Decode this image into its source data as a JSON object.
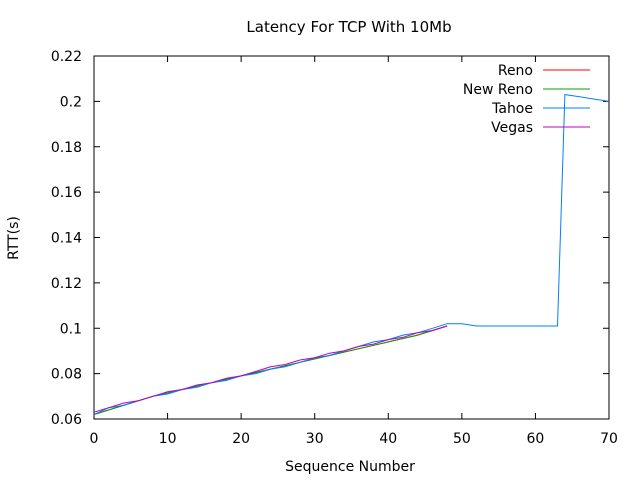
{
  "chart_data": {
    "type": "line",
    "title": "Latency For TCP With 10Mb",
    "xlabel": "Sequence Number",
    "ylabel": "RTT(s)",
    "xlim": [
      0,
      70
    ],
    "ylim": [
      0.06,
      0.22
    ],
    "xticks": [
      "0",
      "10",
      "20",
      "30",
      "40",
      "50",
      "60",
      "70"
    ],
    "yticks": [
      "0.06",
      "0.08",
      "0.1",
      "0.12",
      "0.14",
      "0.16",
      "0.18",
      "0.2",
      "0.22"
    ],
    "grid": false,
    "legend_position": "top-right",
    "series": [
      {
        "name": "Reno",
        "color": "#ff0000",
        "x": [
          0,
          4,
          8,
          12,
          16,
          20,
          24,
          28,
          32,
          36,
          40,
          44,
          48
        ],
        "y": [
          0.062,
          0.066,
          0.07,
          0.073,
          0.076,
          0.079,
          0.082,
          0.085,
          0.088,
          0.091,
          0.094,
          0.097,
          0.101
        ]
      },
      {
        "name": "New Reno",
        "color": "#00a000",
        "x": [
          0,
          4,
          8,
          12,
          16,
          20,
          24,
          28,
          32,
          36,
          40,
          44,
          48
        ],
        "y": [
          0.062,
          0.066,
          0.07,
          0.073,
          0.076,
          0.079,
          0.082,
          0.085,
          0.088,
          0.091,
          0.094,
          0.097,
          0.101
        ]
      },
      {
        "name": "Tahoe",
        "color": "#0080ff",
        "x": [
          0,
          2,
          4,
          6,
          8,
          10,
          12,
          14,
          16,
          18,
          20,
          22,
          24,
          26,
          28,
          30,
          32,
          34,
          36,
          38,
          40,
          42,
          44,
          46,
          48,
          50,
          52,
          55,
          58,
          61,
          63,
          64,
          66,
          68,
          70
        ],
        "y": [
          0.062,
          0.065,
          0.066,
          0.068,
          0.07,
          0.071,
          0.073,
          0.074,
          0.076,
          0.077,
          0.079,
          0.08,
          0.082,
          0.083,
          0.085,
          0.087,
          0.088,
          0.09,
          0.092,
          0.094,
          0.095,
          0.097,
          0.098,
          0.1,
          0.102,
          0.102,
          0.101,
          0.101,
          0.101,
          0.101,
          0.101,
          0.203,
          0.202,
          0.201,
          0.2
        ]
      },
      {
        "name": "Vegas",
        "color": "#c000c0",
        "x": [
          0,
          2,
          4,
          6,
          8,
          10,
          12,
          14,
          16,
          18,
          20,
          22,
          24,
          26,
          28,
          30,
          32,
          34,
          36,
          38,
          40,
          42,
          44,
          46,
          48
        ],
        "y": [
          0.063,
          0.065,
          0.067,
          0.068,
          0.07,
          0.072,
          0.073,
          0.075,
          0.076,
          0.078,
          0.079,
          0.081,
          0.083,
          0.084,
          0.086,
          0.087,
          0.089,
          0.09,
          0.092,
          0.093,
          0.095,
          0.096,
          0.098,
          0.099,
          0.101
        ]
      }
    ]
  }
}
